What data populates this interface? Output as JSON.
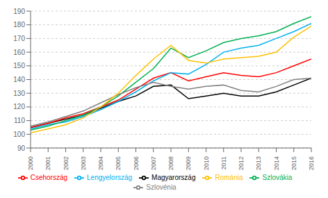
{
  "chart_data": {
    "type": "line",
    "x": [
      2000,
      2001,
      2002,
      2003,
      2004,
      2005,
      2006,
      2007,
      2008,
      2009,
      2010,
      2011,
      2012,
      2013,
      2014,
      2015,
      2016
    ],
    "xlim": [
      2000,
      2016
    ],
    "xticks": [
      2000,
      2001,
      2002,
      2003,
      2004,
      2005,
      2006,
      2007,
      2008,
      2009,
      2010,
      2011,
      2012,
      2013,
      2014,
      2015,
      2016
    ],
    "ylim": [
      90,
      190
    ],
    "yticks": [
      90,
      100,
      110,
      120,
      130,
      140,
      150,
      160,
      170,
      180,
      190
    ],
    "grid": true,
    "legend": "bottom",
    "series": [
      {
        "name": "Magyarország",
        "color": "#000000",
        "values": [
          105,
          108,
          111,
          114,
          119,
          124,
          128,
          135,
          136,
          126,
          128,
          130,
          128,
          128,
          131,
          136,
          141
        ]
      },
      {
        "name": "Csehország",
        "color": "#ff0000",
        "values": [
          105,
          108,
          112,
          115,
          120,
          125,
          133,
          141,
          145,
          139,
          142,
          145,
          143,
          142,
          145,
          150,
          155
        ]
      },
      {
        "name": "Lengyelország",
        "color": "#00b0f0",
        "values": [
          104,
          107,
          109,
          113,
          118,
          124,
          131,
          139,
          145,
          144,
          151,
          160,
          163,
          165,
          170,
          175,
          181
        ]
      },
      {
        "name": "Szlovákia",
        "color": "#00b050",
        "values": [
          103,
          106,
          110,
          114,
          120,
          128,
          138,
          148,
          163,
          156,
          161,
          167,
          170,
          172,
          175,
          181,
          186
        ]
      },
      {
        "name": "Szlovénia",
        "color": "#808080",
        "values": [
          106,
          109,
          113,
          117,
          123,
          129,
          134,
          138,
          135,
          133,
          135,
          136,
          132,
          131,
          135,
          140,
          141
        ]
      },
      {
        "name": "Románia",
        "color": "#ffc000",
        "values": [
          101,
          104,
          107,
          112,
          120,
          130,
          143,
          155,
          165,
          154,
          152,
          155,
          156,
          157,
          160,
          171,
          179
        ]
      }
    ]
  }
}
